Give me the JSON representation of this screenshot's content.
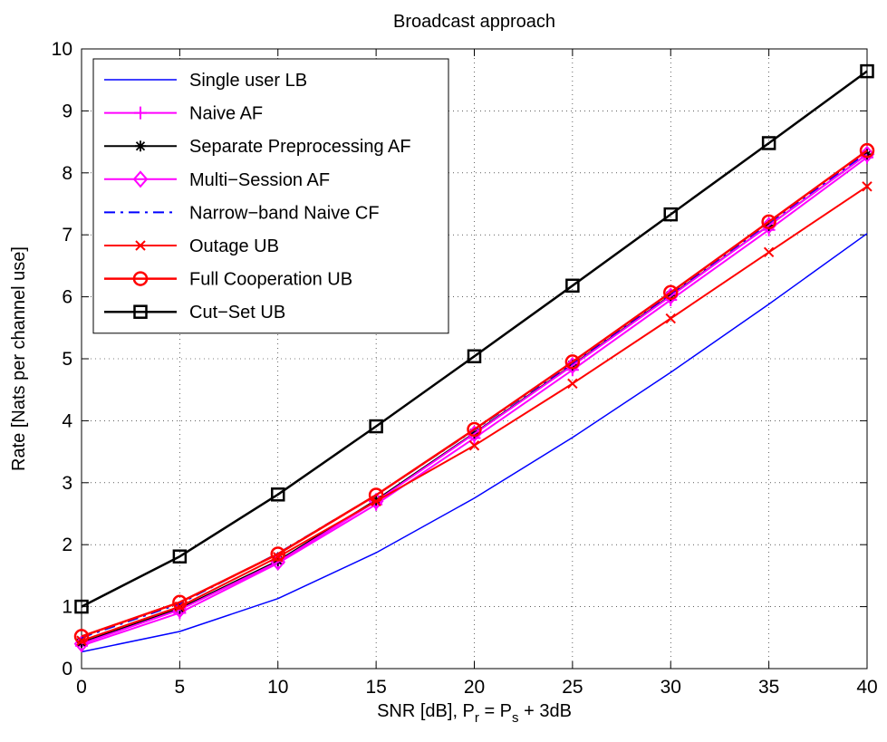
{
  "chart_data": {
    "type": "line",
    "title": "Broadcast approach",
    "xlabel": {
      "main": "SNR [dB], P",
      "sub1": "r",
      "mid": " = P",
      "sub2": "s",
      "tail": " + 3dB"
    },
    "ylabel": "Rate [Nats per channel use]",
    "xlim": [
      0,
      40
    ],
    "ylim": [
      0,
      10
    ],
    "xticks": [
      0,
      5,
      10,
      15,
      20,
      25,
      30,
      35,
      40
    ],
    "yticks": [
      0,
      1,
      2,
      3,
      4,
      5,
      6,
      7,
      8,
      9,
      10
    ],
    "grid": true,
    "legend_position": "top-left",
    "x": [
      0,
      5,
      10,
      15,
      20,
      25,
      30,
      35,
      40
    ],
    "series": [
      {
        "name": "Single user LB",
        "color": "#0000ff",
        "width": 1.5,
        "dash": "",
        "marker": "none",
        "values": [
          0.27,
          0.6,
          1.13,
          1.87,
          2.75,
          3.73,
          4.78,
          5.88,
          7.02
        ]
      },
      {
        "name": "Naive AF",
        "color": "#ff00ff",
        "width": 2,
        "dash": "",
        "marker": "plus",
        "values": [
          0.37,
          0.9,
          1.7,
          2.65,
          3.72,
          4.82,
          5.95,
          7.08,
          8.25
        ]
      },
      {
        "name": "Separate Preprocessing AF",
        "color": "#000000",
        "width": 2,
        "dash": "",
        "marker": "star",
        "values": [
          0.42,
          0.97,
          1.74,
          2.72,
          3.8,
          4.9,
          6.02,
          7.15,
          8.3
        ]
      },
      {
        "name": "Multi−Session AF",
        "color": "#ff00ff",
        "width": 2,
        "dash": "",
        "marker": "diamond",
        "values": [
          0.4,
          0.95,
          1.72,
          2.7,
          3.79,
          4.89,
          6.01,
          7.15,
          8.3
        ]
      },
      {
        "name": "Narrow−band Naive CF",
        "color": "#0000ff",
        "width": 2,
        "dash": "12,6,3,6",
        "marker": "none",
        "values": [
          0.5,
          1.05,
          1.86,
          2.8,
          3.85,
          4.93,
          6.05,
          7.19,
          8.33
        ]
      },
      {
        "name": "Outage UB",
        "color": "#ff0000",
        "width": 2,
        "dash": "",
        "marker": "x",
        "values": [
          0.45,
          1.0,
          1.8,
          2.7,
          3.6,
          4.6,
          5.65,
          6.72,
          7.78
        ]
      },
      {
        "name": "Full Cooperation UB",
        "color": "#ff0000",
        "width": 2.5,
        "dash": "",
        "marker": "circle",
        "values": [
          0.52,
          1.07,
          1.85,
          2.8,
          3.86,
          4.95,
          6.07,
          7.21,
          8.36
        ]
      },
      {
        "name": "Cut−Set UB",
        "color": "#000000",
        "width": 2.5,
        "dash": "",
        "marker": "square",
        "values": [
          1.0,
          1.81,
          2.81,
          3.91,
          5.04,
          6.18,
          7.33,
          8.48,
          9.64
        ]
      }
    ]
  }
}
